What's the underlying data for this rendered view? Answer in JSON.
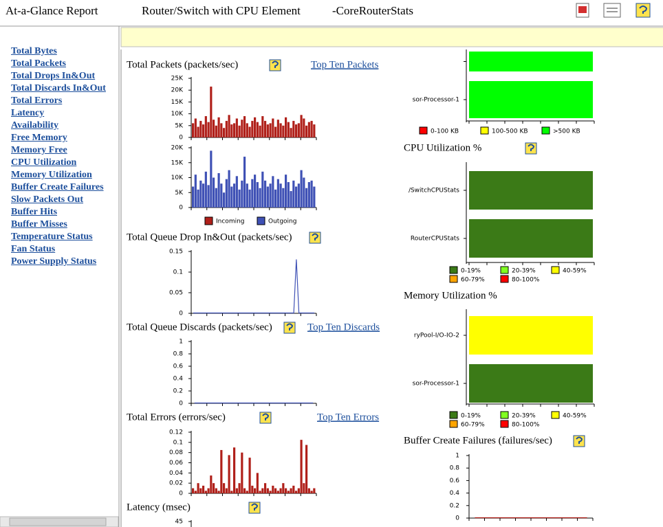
{
  "header": {
    "title": "At-a-Glance Report",
    "device": "Router/Switch with CPU Element",
    "name": "-CoreRouterStats"
  },
  "nav": {
    "links": [
      "Total Bytes",
      "Total Packets",
      "Total Drops In&Out",
      "Total Discards In&Out",
      "Total Errors",
      "Latency",
      "Availability",
      "Free Memory",
      "Memory Free",
      "CPU Utilization",
      "Memory Utilization",
      "Buffer Create Failures",
      "Slow Packets Out",
      "Buffer Hits",
      "Buffer Misses",
      "Temperature Status",
      "Fan Status",
      "Power Supply Status"
    ]
  },
  "left_charts": [
    {
      "title": "Total Packets (packets/sec)",
      "link": "Top Ten Packets",
      "type": "bar",
      "plots": [
        {
          "ylim": [
            0,
            25000
          ],
          "yticks": [
            0,
            {
              "value": 5000,
              "label": "5K"
            },
            {
              "value": 10000,
              "label": "10K"
            },
            {
              "value": 15000,
              "label": "15K"
            },
            {
              "value": 20000,
              "label": "20K"
            },
            {
              "value": 25000,
              "label": "25K"
            }
          ],
          "series": {
            "name": "Incoming",
            "color": "#b0201a",
            "values": [
              6000,
              8000,
              4500,
              7000,
              5500,
              9000,
              6500,
              21500,
              7500,
              5000,
              8500,
              6000,
              4000,
              7000,
              9500,
              5500,
              6000,
              8000,
              5000,
              7500,
              9000,
              6000,
              4500,
              7000,
              8500,
              6500,
              5000,
              9000,
              7000,
              5500,
              6000,
              8000,
              4500,
              7500,
              6000,
              5000,
              8500,
              6500,
              4000,
              7000,
              5500,
              6000,
              9500,
              8000,
              5000,
              6500,
              7000,
              5500
            ]
          }
        },
        {
          "ylim": [
            0,
            20000
          ],
          "yticks": [
            0,
            {
              "value": 5000,
              "label": "5K"
            },
            {
              "value": 10000,
              "label": "10K"
            },
            {
              "value": 15000,
              "label": "15K"
            },
            {
              "value": 20000,
              "label": "20K"
            }
          ],
          "series": {
            "name": "Outgoing",
            "color": "#3f51b5",
            "values": [
              7000,
              11000,
              6000,
              9000,
              8000,
              12000,
              7500,
              19000,
              10000,
              6500,
              11500,
              8000,
              5000,
              9500,
              12500,
              7000,
              8000,
              10500,
              6000,
              9000,
              17000,
              8000,
              6000,
              9500,
              11000,
              8500,
              6500,
              12000,
              9000,
              7000,
              8000,
              10500,
              6000,
              9500,
              8000,
              6500,
              11000,
              8500,
              5500,
              9000,
              7000,
              8000,
              12500,
              10000,
              6500,
              8500,
              9000,
              7000
            ]
          }
        }
      ]
    },
    {
      "title": "Total Queue Drop In&Out (packets/sec)",
      "type": "line",
      "plots": [
        {
          "ylim": [
            0,
            0.15
          ],
          "yticks": [
            0,
            0.05,
            0.1,
            0.15
          ],
          "series": {
            "color": "#3f51b5",
            "values": [
              0,
              0,
              0,
              0,
              0,
              0,
              0,
              0,
              0,
              0,
              0,
              0,
              0,
              0,
              0,
              0,
              0,
              0,
              0,
              0,
              0,
              0,
              0,
              0,
              0,
              0,
              0,
              0,
              0,
              0,
              0,
              0,
              0,
              0,
              0,
              0,
              0,
              0,
              0,
              0,
              0.13,
              0,
              0,
              0,
              0,
              0,
              0,
              0
            ]
          }
        }
      ]
    },
    {
      "title": "Total Queue Discards (packets/sec)",
      "link": "Top Ten Discards",
      "type": "line",
      "plots": [
        {
          "ylim": [
            0,
            1
          ],
          "yticks": [
            0,
            0.2,
            0.4,
            0.6,
            0.8,
            1
          ],
          "series": {
            "color": "#3f51b5",
            "values": [
              0,
              0,
              0,
              0,
              0,
              0,
              0,
              0,
              0,
              0,
              0,
              0,
              0,
              0,
              0,
              0,
              0,
              0,
              0,
              0,
              0,
              0,
              0,
              0
            ]
          }
        }
      ]
    },
    {
      "title": "Total Errors (errors/sec)",
      "link": "Top Ten Errors",
      "type": "bar",
      "plots": [
        {
          "ylim": [
            0,
            0.12
          ],
          "yticks": [
            0,
            0.02,
            0.04,
            0.06,
            0.08,
            0.1,
            0.12
          ],
          "series": {
            "color": "#b0201a",
            "values": [
              0.01,
              0.005,
              0.02,
              0.01,
              0.015,
              0.005,
              0.01,
              0.035,
              0.02,
              0.01,
              0.005,
              0.085,
              0.02,
              0.01,
              0.075,
              0.005,
              0.09,
              0.01,
              0.02,
              0.08,
              0.01,
              0.005,
              0.07,
              0.015,
              0.01,
              0.04,
              0.005,
              0.01,
              0.02,
              0.01,
              0.005,
              0.015,
              0.01,
              0.005,
              0.01,
              0.02,
              0.01,
              0.005,
              0.01,
              0.015,
              0.005,
              0.01,
              0.105,
              0.02,
              0.095,
              0.01,
              0.005,
              0.01
            ]
          }
        }
      ]
    },
    {
      "title": "Latency (msec)",
      "type": "line",
      "plots": [
        {
          "ylim": [
            0,
            45
          ],
          "yticks": [
            45
          ]
        }
      ]
    }
  ],
  "right_charts": [
    {
      "type": "status",
      "rows": [
        {
          "label": null,
          "color": "#00ff00"
        },
        {
          "label": "sor-Processor-1",
          "color": "#00ff00"
        }
      ],
      "legend": [
        {
          "label": "0-100 KB",
          "color": "#ff0000"
        },
        {
          "label": "100-500 KB",
          "color": "#ffff00"
        },
        {
          "label": ">500 KB",
          "color": "#00ff00"
        }
      ]
    },
    {
      "type": "status",
      "title": "CPU Utilization %",
      "rows": [
        {
          "label": "/SwitchCPUStats",
          "color": "#3b7a17"
        },
        {
          "label": "RouterCPUStats",
          "color": "#3b7a17"
        }
      ],
      "legend": [
        {
          "label": "0-19%",
          "color": "#3b7a17"
        },
        {
          "label": "20-39%",
          "color": "#80ff20"
        },
        {
          "label": "40-59%",
          "color": "#ffff00"
        },
        {
          "label": "60-79%",
          "color": "#ffa500"
        },
        {
          "label": "80-100%",
          "color": "#ff0000"
        }
      ]
    },
    {
      "type": "status",
      "title": "Memory Utilization %",
      "rows": [
        {
          "label": "ryPool-I/O-IO-2",
          "color": "#ffff00"
        },
        {
          "label": "sor-Processor-1",
          "color": "#3b7a17"
        }
      ],
      "legend": [
        {
          "label": "0-19%",
          "color": "#3b7a17"
        },
        {
          "label": "20-39%",
          "color": "#80ff20"
        },
        {
          "label": "40-59%",
          "color": "#ffff00"
        },
        {
          "label": "60-79%",
          "color": "#ffa500"
        },
        {
          "label": "80-100%",
          "color": "#ff0000"
        }
      ]
    },
    {
      "type": "line",
      "title": "Buffer Create Failures (failures/sec)",
      "ylim": [
        0,
        1
      ],
      "yticks": [
        0,
        0.2,
        0.4,
        0.6,
        0.8,
        1
      ],
      "series": {
        "color": "#b0201a",
        "values": [
          0,
          0,
          0,
          0,
          0,
          0,
          0,
          0,
          0,
          0,
          0,
          0
        ]
      }
    }
  ]
}
